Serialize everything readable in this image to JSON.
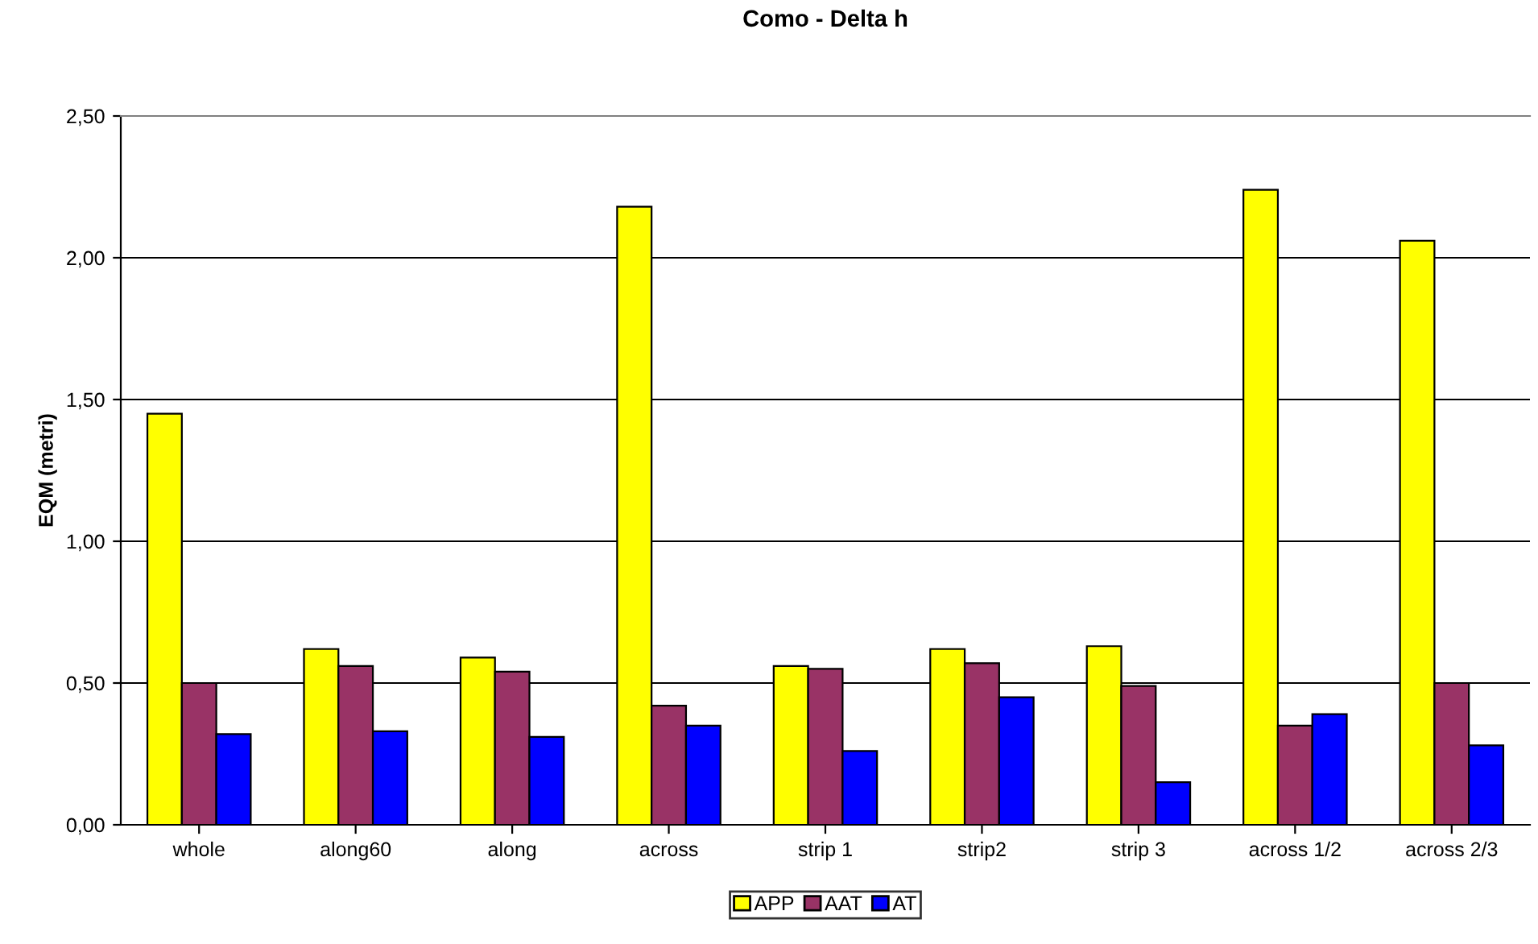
{
  "chart_data": {
    "type": "bar",
    "title": "Como - Delta h",
    "ylabel": "EQM (metri)",
    "categories": [
      "whole",
      "along60",
      "along",
      "across",
      "strip 1",
      "strip2",
      "strip 3",
      "across 1/2",
      "across 2/3"
    ],
    "series": [
      {
        "name": "APP",
        "color": "#ffff00",
        "values": [
          1.45,
          0.62,
          0.59,
          2.18,
          0.56,
          0.62,
          0.63,
          2.24,
          2.06
        ]
      },
      {
        "name": "AAT",
        "color": "#993366",
        "values": [
          0.5,
          0.56,
          0.54,
          0.42,
          0.55,
          0.57,
          0.49,
          0.35,
          0.5
        ]
      },
      {
        "name": "AT",
        "color": "#0000ff",
        "values": [
          0.32,
          0.33,
          0.31,
          0.35,
          0.26,
          0.45,
          0.15,
          0.39,
          0.28
        ]
      }
    ],
    "ylim": [
      0,
      2.5
    ],
    "yticks": [
      {
        "value": 0,
        "label": "0,00"
      },
      {
        "value": 0.5,
        "label": "0,50"
      },
      {
        "value": 1,
        "label": "1,00"
      },
      {
        "value": 1.5,
        "label": "1,50"
      },
      {
        "value": 2,
        "label": "2,00"
      },
      {
        "value": 2.5,
        "label": "2,50"
      }
    ],
    "grid": "y",
    "legend": "bottom"
  }
}
